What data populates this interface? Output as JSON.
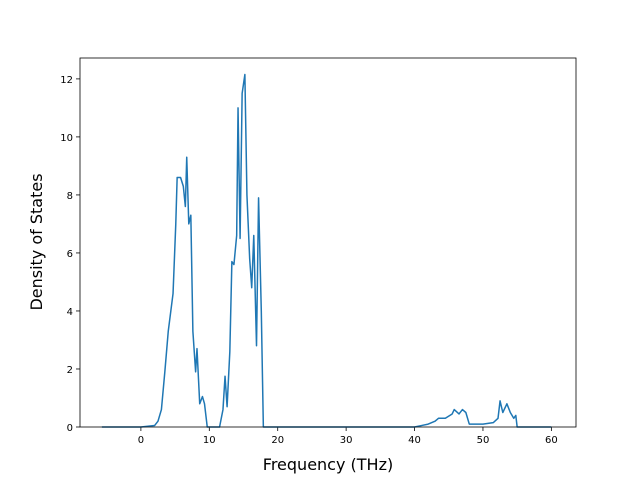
{
  "chart_data": {
    "type": "line",
    "x_label": "Frequency (THz)",
    "y_label": "Density of States",
    "series": [
      {
        "color": "#1f77b4",
        "x": [
          -5.7,
          0,
          2,
          2.5,
          3,
          3.5,
          4,
          4.7,
          5.1,
          5.3,
          5.8,
          6.2,
          6.5,
          6.7,
          7,
          7.3,
          7.6,
          8,
          8.2,
          8.6,
          9,
          9.3,
          9.7,
          11.5,
          12,
          12.3,
          12.6,
          13,
          13.3,
          13.6,
          14,
          14.2,
          14.5,
          14.8,
          15.2,
          15.5,
          15.9,
          16.2,
          16.5,
          16.9,
          17.2,
          17.6,
          17.9,
          40,
          41,
          42,
          43,
          43.5,
          44.5,
          45.5,
          45.8,
          46.5,
          47,
          47.5,
          48,
          50,
          51.5,
          52.2,
          52.5,
          52.9,
          53.5,
          54,
          54.5,
          54.8,
          55,
          60
        ],
        "values": [
          0,
          0,
          0.05,
          0.2,
          0.6,
          1.9,
          3.3,
          4.6,
          7.0,
          8.6,
          8.6,
          8.3,
          7.6,
          9.3,
          7.0,
          7.3,
          3.3,
          1.9,
          2.7,
          0.8,
          1.05,
          0.8,
          0,
          0,
          0.6,
          1.75,
          0.7,
          2.6,
          5.7,
          5.6,
          6.6,
          11.0,
          6.5,
          11.5,
          12.15,
          8.0,
          5.8,
          4.8,
          6.6,
          2.8,
          7.9,
          4.0,
          0,
          0,
          0.05,
          0.1,
          0.2,
          0.3,
          0.3,
          0.45,
          0.6,
          0.45,
          0.6,
          0.5,
          0.1,
          0.1,
          0.15,
          0.3,
          0.9,
          0.5,
          0.8,
          0.5,
          0.3,
          0.4,
          0,
          0
        ]
      }
    ],
    "xlim": [
      -8.9,
      63.6
    ],
    "ylim": [
      0,
      12.72
    ],
    "xticks": [
      0,
      10,
      20,
      30,
      40,
      50,
      60
    ],
    "yticks": [
      0,
      2,
      4,
      6,
      8,
      10,
      12
    ]
  }
}
